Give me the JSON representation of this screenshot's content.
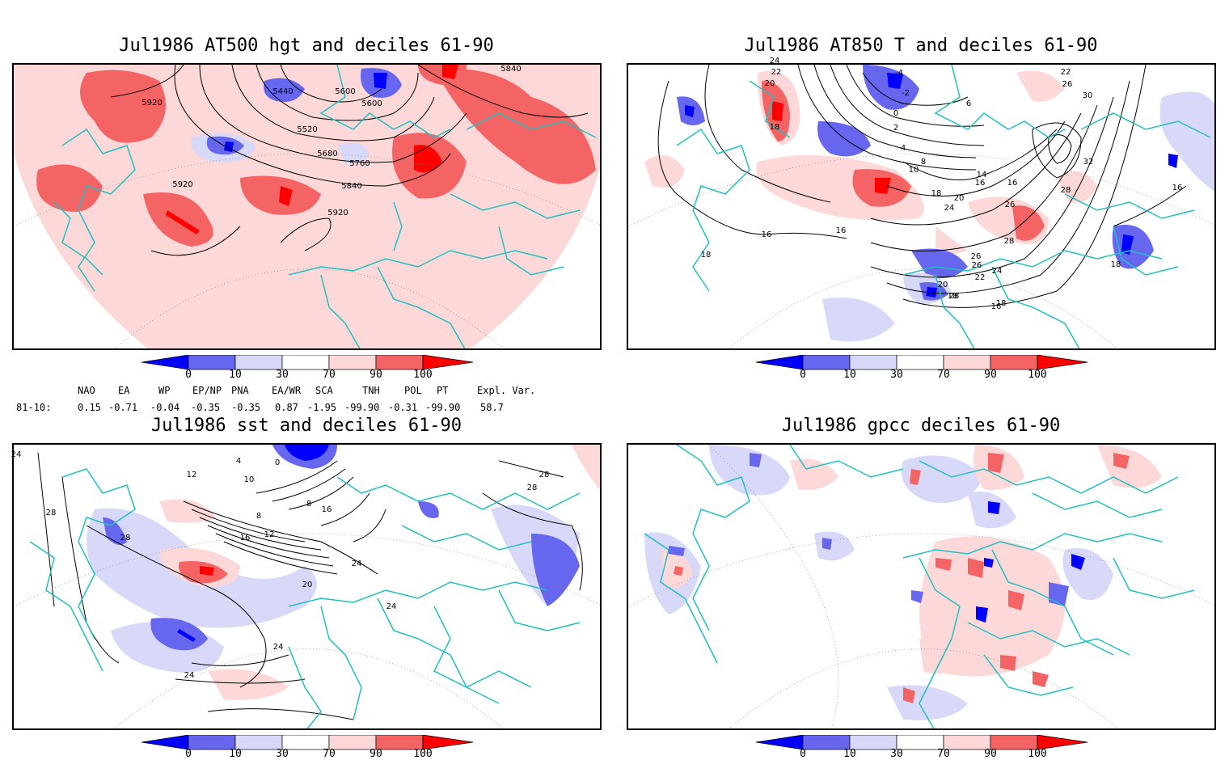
{
  "colors": {
    "deep_blue": "#0000ff",
    "mid_blue": "#6666ee",
    "light_blue": "#d8d8f8",
    "light_red": "#fcd8d8",
    "mid_red": "#f56464",
    "deep_red": "#ff0000",
    "coast": "#20c0c0",
    "contour": "#000000"
  },
  "panels": [
    {
      "title": "Jul1986 AT500 hgt and deciles 61-90",
      "contour_labels": [
        "5920",
        "5440",
        "5600",
        "5600",
        "5840",
        "5520",
        "5680",
        "5760",
        "5840",
        "5920",
        "5920"
      ]
    },
    {
      "title": "Jul1986 AT850 T and deciles 61-90",
      "contour_labels": [
        "24",
        "22",
        "20",
        "18",
        "-4",
        "-2",
        "0",
        "2",
        "4",
        "6",
        "8",
        "10",
        "14",
        "16",
        "18",
        "20",
        "24",
        "26",
        "28",
        "26",
        "22",
        "26",
        "30",
        "32",
        "28",
        "16",
        "16",
        "16",
        "18",
        "18",
        "16",
        "18",
        "28",
        "26",
        "24",
        "22",
        "20",
        "18",
        "16"
      ]
    },
    {
      "title": "Jul1986 sst and deciles 61-90",
      "contour_labels": [
        "24",
        "28",
        "28",
        "12",
        "4",
        "0",
        "10",
        "8",
        "16",
        "12",
        "8",
        "16",
        "20",
        "24",
        "24",
        "28",
        "28",
        "24",
        "24"
      ]
    },
    {
      "title": "Jul1986 gpcc deciles 61-90",
      "contour_labels": []
    }
  ],
  "colorbar_labels": [
    "0",
    "10",
    "30",
    "70",
    "90",
    "100"
  ],
  "indices": {
    "headers": [
      "NAO",
      "EA",
      "WP",
      "EP/NP",
      "PNA",
      "EA/WR",
      "SCA",
      "TNH",
      "POL",
      "PT",
      "Expl. Var."
    ],
    "row_label": "81-10:",
    "values": [
      "0.15",
      "-0.71",
      "-0.04",
      "-0.35",
      "-0.35",
      "0.87",
      "-1.95",
      "-99.90",
      "-0.31",
      "-99.90",
      "58.7"
    ]
  }
}
